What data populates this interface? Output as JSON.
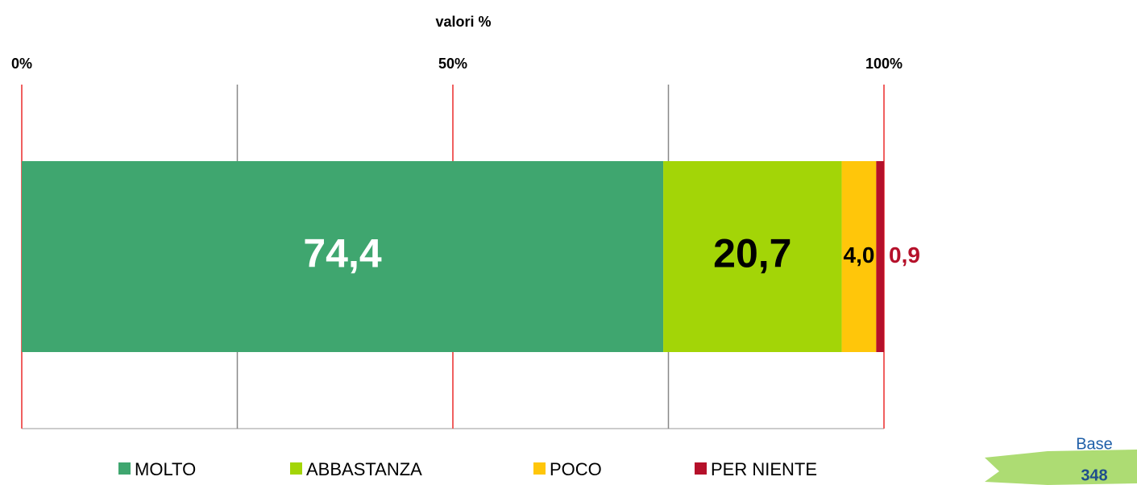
{
  "chart_data": {
    "type": "stacked_barh",
    "title": "valori %",
    "categories": [
      null
    ],
    "series": [
      {
        "name": "MOLTO",
        "color": "#3fa66f",
        "label_color": "#ffffff",
        "values": [
          74.4
        ],
        "value_labels": [
          "74,4"
        ]
      },
      {
        "name": "ABBASTANZA",
        "color": "#a3d507",
        "label_color": "#000000",
        "values": [
          20.7
        ],
        "value_labels": [
          "20,7"
        ]
      },
      {
        "name": "POCO",
        "color": "#ffc60a",
        "label_color": "#000000",
        "values": [
          4.0
        ],
        "value_labels": [
          "4,0"
        ]
      },
      {
        "name": "PER NIENTE",
        "color": "#b5102a",
        "label_color": "#b5102a",
        "values": [
          0.9
        ],
        "value_labels": [
          "0,9"
        ]
      }
    ],
    "xlim": [
      0,
      100
    ],
    "xticks": [
      {
        "value": 0,
        "label": "0%"
      },
      {
        "value": 50,
        "label": "50%"
      },
      {
        "value": 100,
        "label": "100%"
      }
    ],
    "xminor": [
      25,
      75
    ],
    "grid": true,
    "legend": "bottom",
    "base": {
      "label": "Base",
      "value": 348
    }
  }
}
